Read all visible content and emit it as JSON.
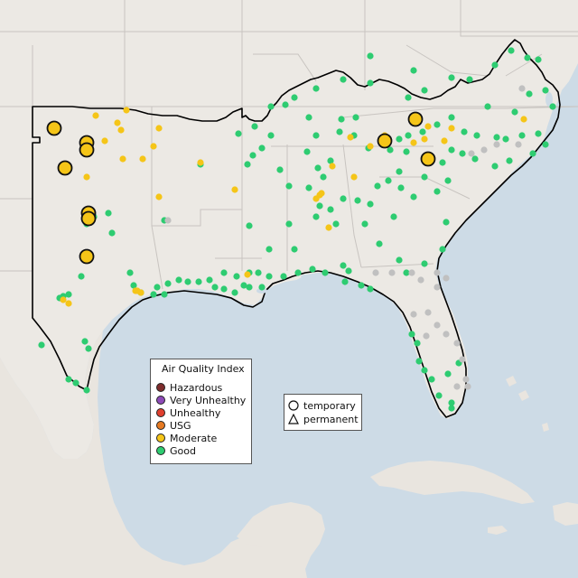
{
  "legend": {
    "title": "Air Quality Index",
    "categories": [
      {
        "label": "Hazardous",
        "color": "#7e2d2d"
      },
      {
        "label": "Very Unhealthy",
        "color": "#8e4bb8"
      },
      {
        "label": "Unhealthy",
        "color": "#e0402f"
      },
      {
        "label": "USG",
        "color": "#e67a22"
      },
      {
        "label": "Moderate",
        "color": "#f5c518"
      },
      {
        "label": "Good",
        "color": "#2ecc71"
      }
    ]
  },
  "monitor_types": {
    "temporary": "temporary",
    "permanent": "permanent"
  },
  "colors": {
    "water": "#cddbe6",
    "land": "#ece9e4",
    "state_line": "#c8c4c0",
    "region_outline": "#000000",
    "no_data": "#c0c0c0",
    "good": "#2ecc71",
    "moderate": "#f5c518"
  }
}
